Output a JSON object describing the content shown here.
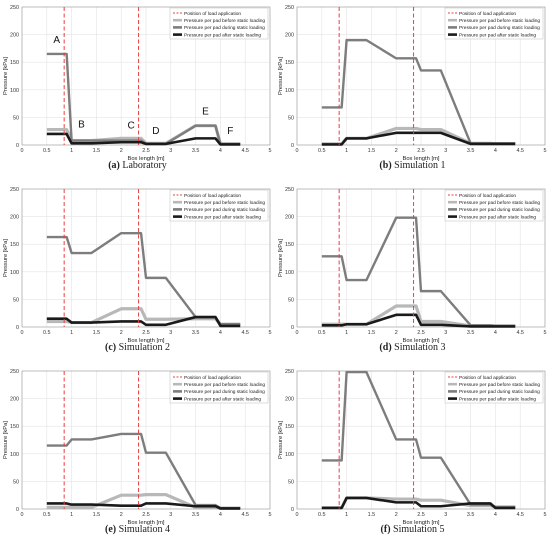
{
  "figure": {
    "legend_entries": [
      "Position of load application",
      "Pressure per pad before static loading",
      "Pressure per pad during static loading",
      "Pressure per pad after static loading"
    ],
    "series_colors": {
      "load": "#e8403f",
      "before": "#b8b8b8",
      "during": "#7d7d7d",
      "after": "#1a1a1a"
    }
  },
  "chart_data": [
    {
      "type": "line",
      "caption_id": "(a)",
      "caption_text": "Laboratory",
      "xlabel": "Box length [m]",
      "ylabel": "Pressure [kPa]",
      "xlim": [
        0,
        5
      ],
      "ylim": [
        0,
        250
      ],
      "xticks": [
        "0",
        "0.5",
        "1",
        "1.5",
        "2",
        "2.5",
        "3",
        "3.5",
        "4",
        "4.5",
        "5"
      ],
      "yticks": [
        "0",
        "50",
        "100",
        "150",
        "200",
        "250"
      ],
      "grid": true,
      "legend_position": "top-right",
      "load_positions_x": [
        0.85,
        2.35
      ],
      "pad_x": [
        [
          0.5,
          0.9
        ],
        [
          1.0,
          1.4
        ],
        [
          2.0,
          2.4
        ],
        [
          2.5,
          2.9
        ],
        [
          3.5,
          3.9
        ],
        [
          4.0,
          4.4
        ]
      ],
      "pad_labels": [
        "A",
        "B",
        "C",
        "D",
        "E",
        "F"
      ],
      "series": [
        {
          "name": "Pressure per pad before static loading",
          "key": "before",
          "values": [
            28,
            8,
            12,
            3,
            35,
            2
          ]
        },
        {
          "name": "Pressure per pad during static loading",
          "key": "during",
          "values": [
            165,
            8,
            8,
            2,
            35,
            2
          ]
        },
        {
          "name": "Pressure per pad after static loading",
          "key": "after",
          "values": [
            20,
            3,
            5,
            2,
            12,
            1
          ]
        }
      ]
    },
    {
      "type": "line",
      "caption_id": "(b)",
      "caption_text": "Simulation 1",
      "xlabel": "Box length [m]",
      "ylabel": "Pressure [kPa]",
      "xlim": [
        0,
        5
      ],
      "ylim": [
        0,
        250
      ],
      "xticks": [
        "0",
        "0.5",
        "1",
        "1.5",
        "2",
        "2.5",
        "3",
        "3.5",
        "4",
        "4.5",
        "5"
      ],
      "yticks": [
        "0",
        "50",
        "100",
        "150",
        "200",
        "250"
      ],
      "grid": true,
      "legend_position": "top-right",
      "load_positions_x": [
        0.85,
        2.35
      ],
      "pad_x": [
        [
          0.5,
          0.9
        ],
        [
          1.0,
          1.4
        ],
        [
          2.0,
          2.4
        ],
        [
          2.5,
          2.9
        ],
        [
          3.5,
          3.9
        ],
        [
          4.0,
          4.4
        ]
      ],
      "pad_labels": [],
      "series": [
        {
          "name": "Pressure per pad before static loading",
          "key": "before",
          "values": [
            2,
            12,
            30,
            28,
            3,
            2
          ]
        },
        {
          "name": "Pressure per pad during static loading",
          "key": "during",
          "values": [
            68,
            190,
            157,
            135,
            3,
            3
          ]
        },
        {
          "name": "Pressure per pad after static loading",
          "key": "after",
          "values": [
            1,
            12,
            22,
            22,
            2,
            2
          ]
        }
      ]
    },
    {
      "type": "line",
      "caption_id": "(c)",
      "caption_text": "Simulation 2",
      "xlabel": "Box length [m]",
      "ylabel": "Pressure [kPa]",
      "xlim": [
        0,
        5
      ],
      "ylim": [
        0,
        250
      ],
      "xticks": [
        "0",
        "0.5",
        "1",
        "1.5",
        "2",
        "2.5",
        "3",
        "3.5",
        "4",
        "4.5",
        "5"
      ],
      "yticks": [
        "0",
        "50",
        "100",
        "150",
        "200",
        "250"
      ],
      "grid": true,
      "legend_position": "top-right",
      "load_positions_x": [
        0.85,
        2.35
      ],
      "pad_x": [
        [
          0.5,
          0.9
        ],
        [
          1.0,
          1.4
        ],
        [
          2.0,
          2.4
        ],
        [
          2.5,
          2.9
        ],
        [
          3.5,
          3.9
        ],
        [
          4.0,
          4.4
        ]
      ],
      "pad_labels": [],
      "series": [
        {
          "name": "Pressure per pad before static loading",
          "key": "before",
          "values": [
            10,
            8,
            33,
            14,
            15,
            5
          ]
        },
        {
          "name": "Pressure per pad during static loading",
          "key": "during",
          "values": [
            163,
            134,
            170,
            89,
            18,
            5
          ]
        },
        {
          "name": "Pressure per pad after static loading",
          "key": "after",
          "values": [
            15,
            8,
            10,
            4,
            18,
            2
          ]
        }
      ]
    },
    {
      "type": "line",
      "caption_id": "(d)",
      "caption_text": "Simulation 3",
      "xlabel": "Box length [m]",
      "ylabel": "Pressure [kPa]",
      "xlim": [
        0,
        5
      ],
      "ylim": [
        0,
        250
      ],
      "xticks": [
        "0",
        "0.5",
        "1",
        "1.5",
        "2",
        "2.5",
        "3",
        "3.5",
        "4",
        "4.5",
        "5"
      ],
      "yticks": [
        "0",
        "50",
        "100",
        "150",
        "200",
        "250"
      ],
      "grid": true,
      "legend_position": "top-right",
      "load_positions_x": [
        0.85,
        2.35
      ],
      "pad_x": [
        [
          0.5,
          0.9
        ],
        [
          1.0,
          1.4
        ],
        [
          2.0,
          2.4
        ],
        [
          2.5,
          2.9
        ],
        [
          3.5,
          3.9
        ],
        [
          4.0,
          4.4
        ]
      ],
      "pad_labels": [],
      "series": [
        {
          "name": "Pressure per pad before static loading",
          "key": "before",
          "values": [
            5,
            5,
            38,
            10,
            2,
            2
          ]
        },
        {
          "name": "Pressure per pad during static loading",
          "key": "during",
          "values": [
            128,
            85,
            198,
            65,
            3,
            2
          ]
        },
        {
          "name": "Pressure per pad after static loading",
          "key": "after",
          "values": [
            3,
            5,
            22,
            4,
            1,
            1
          ]
        }
      ]
    },
    {
      "type": "line",
      "caption_id": "(e)",
      "caption_text": "Simulation 4",
      "xlabel": "Box length [m]",
      "ylabel": "Pressure [kPa]",
      "xlim": [
        0,
        5
      ],
      "ylim": [
        0,
        250
      ],
      "xticks": [
        "0",
        "0.5",
        "1",
        "1.5",
        "2",
        "2.5",
        "3",
        "3.5",
        "4",
        "4.5",
        "5"
      ],
      "yticks": [
        "0",
        "50",
        "100",
        "150",
        "200",
        "250"
      ],
      "grid": true,
      "legend_position": "top-right",
      "load_positions_x": [
        0.85,
        2.35
      ],
      "pad_x": [
        [
          0.5,
          0.9
        ],
        [
          1.0,
          1.4
        ],
        [
          2.0,
          2.4
        ],
        [
          2.5,
          2.9
        ],
        [
          3.5,
          3.9
        ],
        [
          4.0,
          4.4
        ]
      ],
      "pad_labels": [],
      "series": [
        {
          "name": "Pressure per pad before static loading",
          "key": "before",
          "values": [
            3,
            3,
            25,
            26,
            3,
            1
          ]
        },
        {
          "name": "Pressure per pad during static loading",
          "key": "during",
          "values": [
            115,
            126,
            136,
            102,
            7,
            2
          ]
        },
        {
          "name": "Pressure per pad after static loading",
          "key": "after",
          "values": [
            10,
            8,
            6,
            10,
            5,
            1
          ]
        }
      ]
    },
    {
      "type": "line",
      "caption_id": "(f)",
      "caption_text": "Simulation 5",
      "xlabel": "Box length [m]",
      "ylabel": "Pressure [kPa]",
      "xlim": [
        0,
        5
      ],
      "ylim": [
        0,
        250
      ],
      "xticks": [
        "0",
        "0.5",
        "1",
        "1.5",
        "2",
        "2.5",
        "3",
        "3.5",
        "4",
        "4.5",
        "5"
      ],
      "yticks": [
        "0",
        "50",
        "100",
        "150",
        "200",
        "250"
      ],
      "grid": true,
      "legend_position": "top-right",
      "load_positions_x": [
        0.85,
        2.35
      ],
      "pad_x": [
        [
          0.5,
          0.9
        ],
        [
          1.0,
          1.4
        ],
        [
          2.0,
          2.4
        ],
        [
          2.5,
          2.9
        ],
        [
          3.5,
          3.9
        ],
        [
          4.0,
          4.4
        ]
      ],
      "pad_labels": [],
      "series": [
        {
          "name": "Pressure per pad before static loading",
          "key": "before",
          "values": [
            2,
            20,
            18,
            16,
            6,
            4
          ]
        },
        {
          "name": "Pressure per pad during static loading",
          "key": "during",
          "values": [
            88,
            248,
            126,
            93,
            8,
            3
          ]
        },
        {
          "name": "Pressure per pad after static loading",
          "key": "after",
          "values": [
            2,
            20,
            12,
            5,
            10,
            2
          ]
        }
      ]
    }
  ]
}
